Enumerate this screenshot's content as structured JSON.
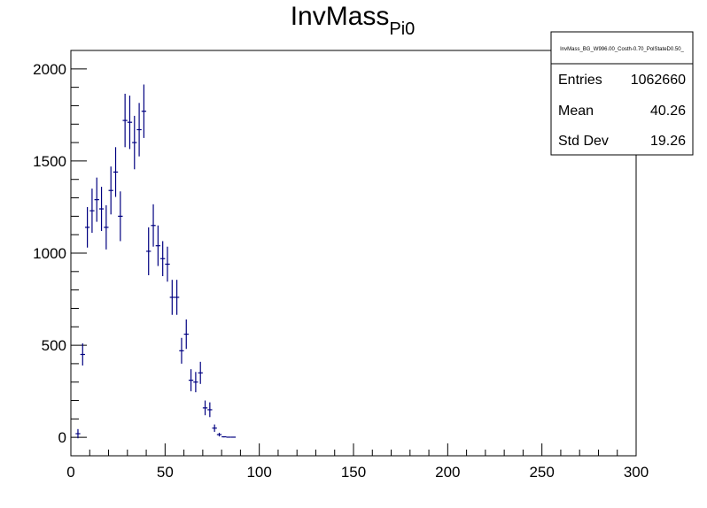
{
  "chart_data": {
    "type": "scatter",
    "title": "InvMass",
    "title_subscript": "Pi0",
    "xlabel": "",
    "ylabel": "",
    "xlim": [
      0,
      300
    ],
    "ylim": [
      -100,
      2100
    ],
    "xticks": [
      0,
      50,
      100,
      150,
      200,
      250,
      300
    ],
    "yticks": [
      0,
      500,
      1000,
      1500,
      2000
    ],
    "grid": false,
    "marker_color": "#000080",
    "bin_width": 2.5,
    "points": [
      {
        "x": 3.75,
        "y": 20,
        "err": 25
      },
      {
        "x": 6.25,
        "y": 450,
        "err": 60
      },
      {
        "x": 8.75,
        "y": 1140,
        "err": 110
      },
      {
        "x": 11.25,
        "y": 1230,
        "err": 120
      },
      {
        "x": 13.75,
        "y": 1290,
        "err": 120
      },
      {
        "x": 16.25,
        "y": 1240,
        "err": 120
      },
      {
        "x": 18.75,
        "y": 1140,
        "err": 120
      },
      {
        "x": 21.25,
        "y": 1340,
        "err": 130
      },
      {
        "x": 23.75,
        "y": 1440,
        "err": 135
      },
      {
        "x": 26.25,
        "y": 1200,
        "err": 135
      },
      {
        "x": 28.75,
        "y": 1720,
        "err": 145
      },
      {
        "x": 31.25,
        "y": 1710,
        "err": 145
      },
      {
        "x": 33.75,
        "y": 1600,
        "err": 145
      },
      {
        "x": 36.25,
        "y": 1670,
        "err": 145
      },
      {
        "x": 38.75,
        "y": 1770,
        "err": 145
      },
      {
        "x": 41.25,
        "y": 1010,
        "err": 130
      },
      {
        "x": 43.75,
        "y": 1150,
        "err": 115
      },
      {
        "x": 46.25,
        "y": 1040,
        "err": 110
      },
      {
        "x": 48.75,
        "y": 970,
        "err": 95
      },
      {
        "x": 51.25,
        "y": 940,
        "err": 95
      },
      {
        "x": 53.75,
        "y": 760,
        "err": 95
      },
      {
        "x": 56.25,
        "y": 760,
        "err": 95
      },
      {
        "x": 58.75,
        "y": 470,
        "err": 70
      },
      {
        "x": 61.25,
        "y": 560,
        "err": 80
      },
      {
        "x": 63.75,
        "y": 310,
        "err": 60
      },
      {
        "x": 66.25,
        "y": 300,
        "err": 55
      },
      {
        "x": 68.75,
        "y": 350,
        "err": 60
      },
      {
        "x": 71.25,
        "y": 160,
        "err": 40
      },
      {
        "x": 73.75,
        "y": 150,
        "err": 40
      },
      {
        "x": 76.25,
        "y": 50,
        "err": 20
      },
      {
        "x": 78.75,
        "y": 15,
        "err": 10
      },
      {
        "x": 81.25,
        "y": 3,
        "err": 3
      },
      {
        "x": 83.75,
        "y": 1,
        "err": 1
      },
      {
        "x": 86.25,
        "y": 1,
        "err": 1
      }
    ]
  },
  "stats": {
    "name": "InvMass_BG_W996.00_Costh-0.70_PolStateD0.50_",
    "rows": [
      {
        "label": "Entries",
        "value": "1062660"
      },
      {
        "label": "Mean",
        "value": "40.26"
      },
      {
        "label": "Std Dev",
        "value": "19.26"
      }
    ]
  }
}
